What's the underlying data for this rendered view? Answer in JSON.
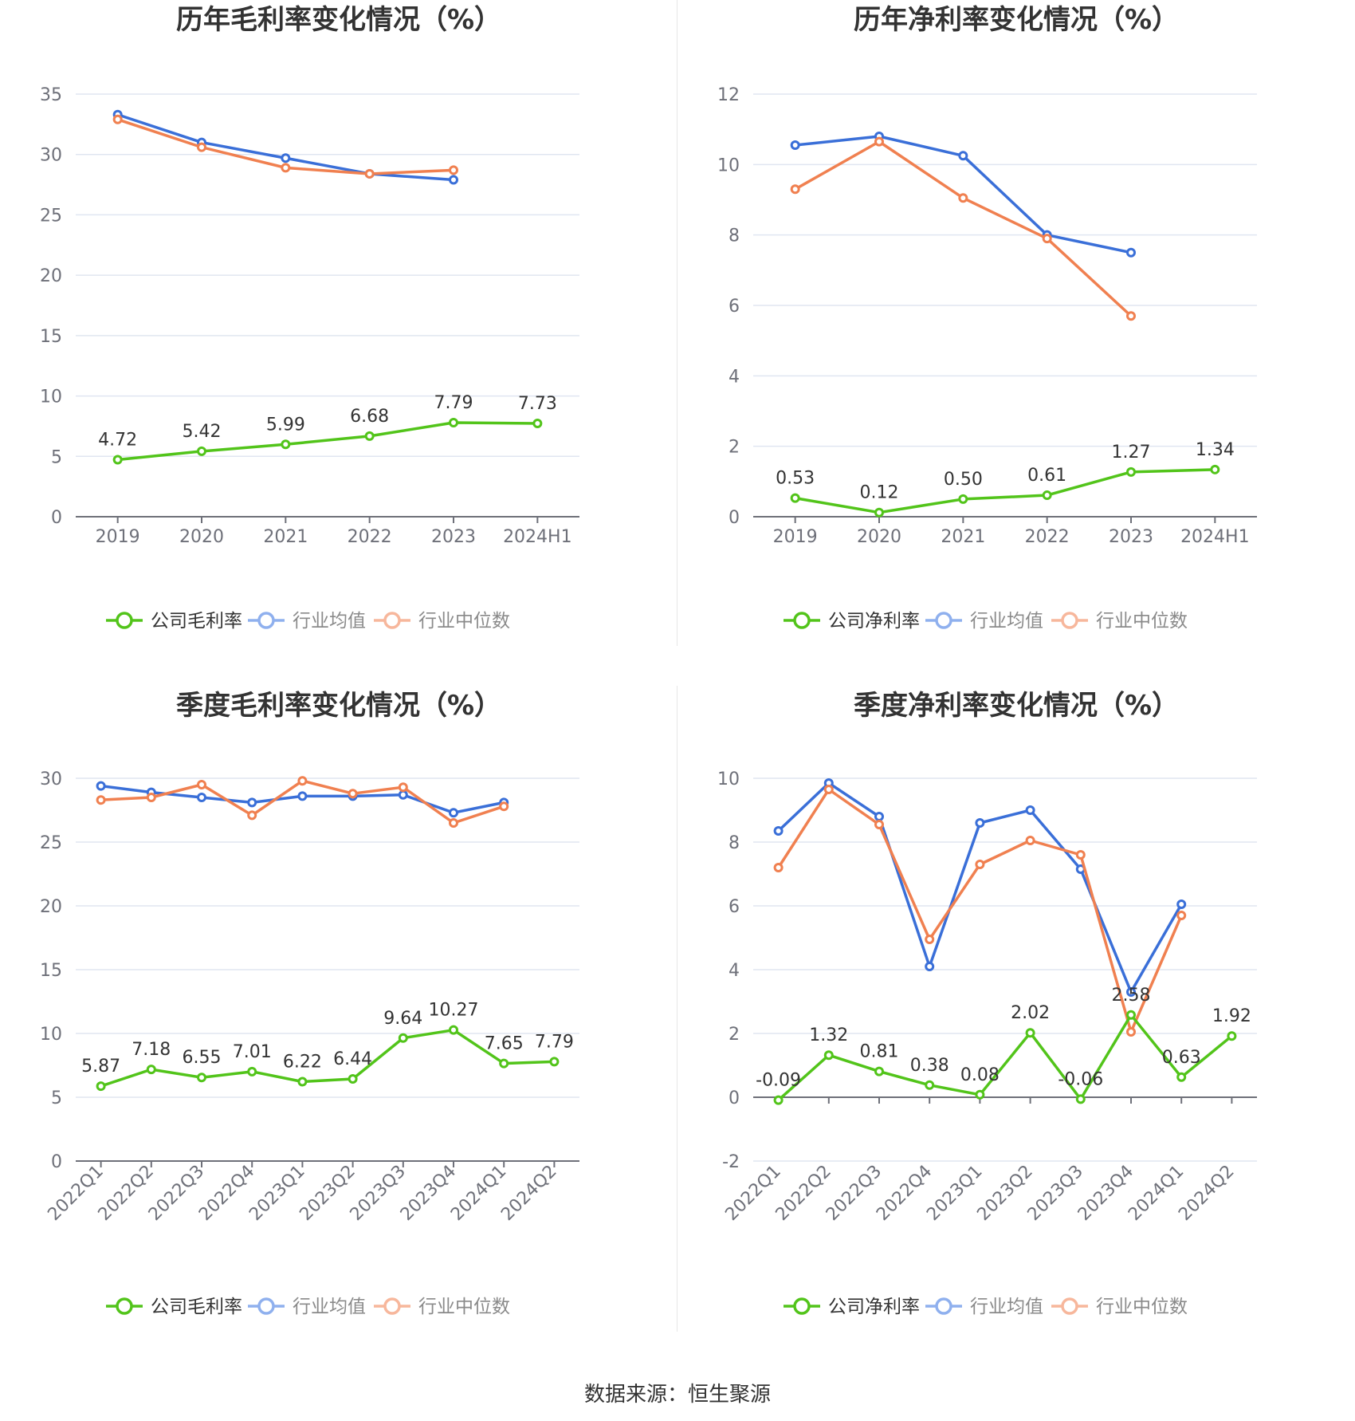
{
  "footer": {
    "source": "数据来源：恒生聚源"
  },
  "colors": {
    "company": "#52c41a",
    "average": "#3a6fd8",
    "median": "#f08050"
  },
  "chart_data": [
    {
      "type": "line",
      "title": "历年毛利率变化情况（%）",
      "categories": [
        "2019",
        "2020",
        "2021",
        "2022",
        "2023",
        "2024H1"
      ],
      "ylim": [
        0,
        35
      ],
      "yticks": [
        0,
        5,
        10,
        15,
        20,
        25,
        30,
        35
      ],
      "grid": true,
      "legend_position": "bottom",
      "series": [
        {
          "name": "公司毛利率",
          "values": [
            4.72,
            5.42,
            5.99,
            6.68,
            7.79,
            7.73
          ],
          "labels": [
            "4.72",
            "5.42",
            "5.99",
            "6.68",
            "7.79",
            "7.73"
          ]
        },
        {
          "name": "行业均值",
          "values": [
            33.3,
            31.0,
            29.7,
            28.4,
            27.9,
            null
          ]
        },
        {
          "name": "行业中位数",
          "values": [
            32.9,
            30.6,
            28.9,
            28.4,
            28.7,
            null
          ]
        }
      ]
    },
    {
      "type": "line",
      "title": "历年净利率变化情况（%）",
      "categories": [
        "2019",
        "2020",
        "2021",
        "2022",
        "2023",
        "2024H1"
      ],
      "ylim": [
        0,
        12
      ],
      "yticks": [
        0,
        2,
        4,
        6,
        8,
        10,
        12
      ],
      "grid": true,
      "legend_position": "bottom",
      "series": [
        {
          "name": "公司净利率",
          "values": [
            0.53,
            0.12,
            0.5,
            0.61,
            1.27,
            1.34
          ],
          "labels": [
            "0.53",
            "0.12",
            "0.50",
            "0.61",
            "1.27",
            "1.34"
          ]
        },
        {
          "name": "行业均值",
          "values": [
            10.55,
            10.8,
            10.25,
            8.0,
            7.5,
            null
          ]
        },
        {
          "name": "行业中位数",
          "values": [
            9.3,
            10.65,
            9.05,
            7.9,
            5.7,
            null
          ]
        }
      ]
    },
    {
      "type": "line",
      "title": "季度毛利率变化情况（%）",
      "categories": [
        "2022Q1",
        "2022Q2",
        "2022Q3",
        "2022Q4",
        "2023Q1",
        "2023Q2",
        "2023Q3",
        "2023Q4",
        "2024Q1",
        "2024Q2"
      ],
      "ylim": [
        0,
        30
      ],
      "yticks": [
        0,
        5,
        10,
        15,
        20,
        25,
        30
      ],
      "grid": true,
      "legend_position": "bottom",
      "series": [
        {
          "name": "公司毛利率",
          "values": [
            5.87,
            7.18,
            6.55,
            7.01,
            6.22,
            6.44,
            9.64,
            10.27,
            7.65,
            7.79
          ],
          "labels": [
            "5.87",
            "7.18",
            "6.55",
            "7.01",
            "6.22",
            "6.44",
            "9.64",
            "10.27",
            "7.65",
            "7.79"
          ]
        },
        {
          "name": "行业均值",
          "values": [
            29.4,
            28.9,
            28.5,
            28.1,
            28.6,
            28.6,
            28.7,
            27.3,
            28.1,
            null
          ]
        },
        {
          "name": "行业中位数",
          "values": [
            28.3,
            28.5,
            29.5,
            27.1,
            29.8,
            28.8,
            29.3,
            26.5,
            27.8,
            null
          ]
        }
      ]
    },
    {
      "type": "line",
      "title": "季度净利率变化情况（%）",
      "categories": [
        "2022Q1",
        "2022Q2",
        "2022Q3",
        "2022Q4",
        "2023Q1",
        "2023Q2",
        "2023Q3",
        "2023Q4",
        "2024Q1",
        "2024Q2"
      ],
      "ylim": [
        -2,
        10
      ],
      "yticks": [
        -2,
        0,
        2,
        4,
        6,
        8,
        10
      ],
      "grid": true,
      "legend_position": "bottom",
      "series": [
        {
          "name": "公司净利率",
          "values": [
            -0.09,
            1.32,
            0.81,
            0.38,
            0.08,
            2.02,
            -0.06,
            2.58,
            0.63,
            1.92
          ],
          "labels": [
            "-0.09",
            "1.32",
            "0.81",
            "0.38",
            "0.08",
            "2.02",
            "-0.06",
            "2.58",
            "0.63",
            "1.92"
          ]
        },
        {
          "name": "行业均值",
          "values": [
            8.35,
            9.85,
            8.8,
            4.1,
            8.6,
            9.0,
            7.15,
            3.3,
            6.05,
            null
          ]
        },
        {
          "name": "行业中位数",
          "values": [
            7.2,
            9.65,
            8.55,
            4.95,
            7.3,
            8.05,
            7.6,
            2.05,
            5.7,
            null
          ]
        }
      ]
    }
  ]
}
